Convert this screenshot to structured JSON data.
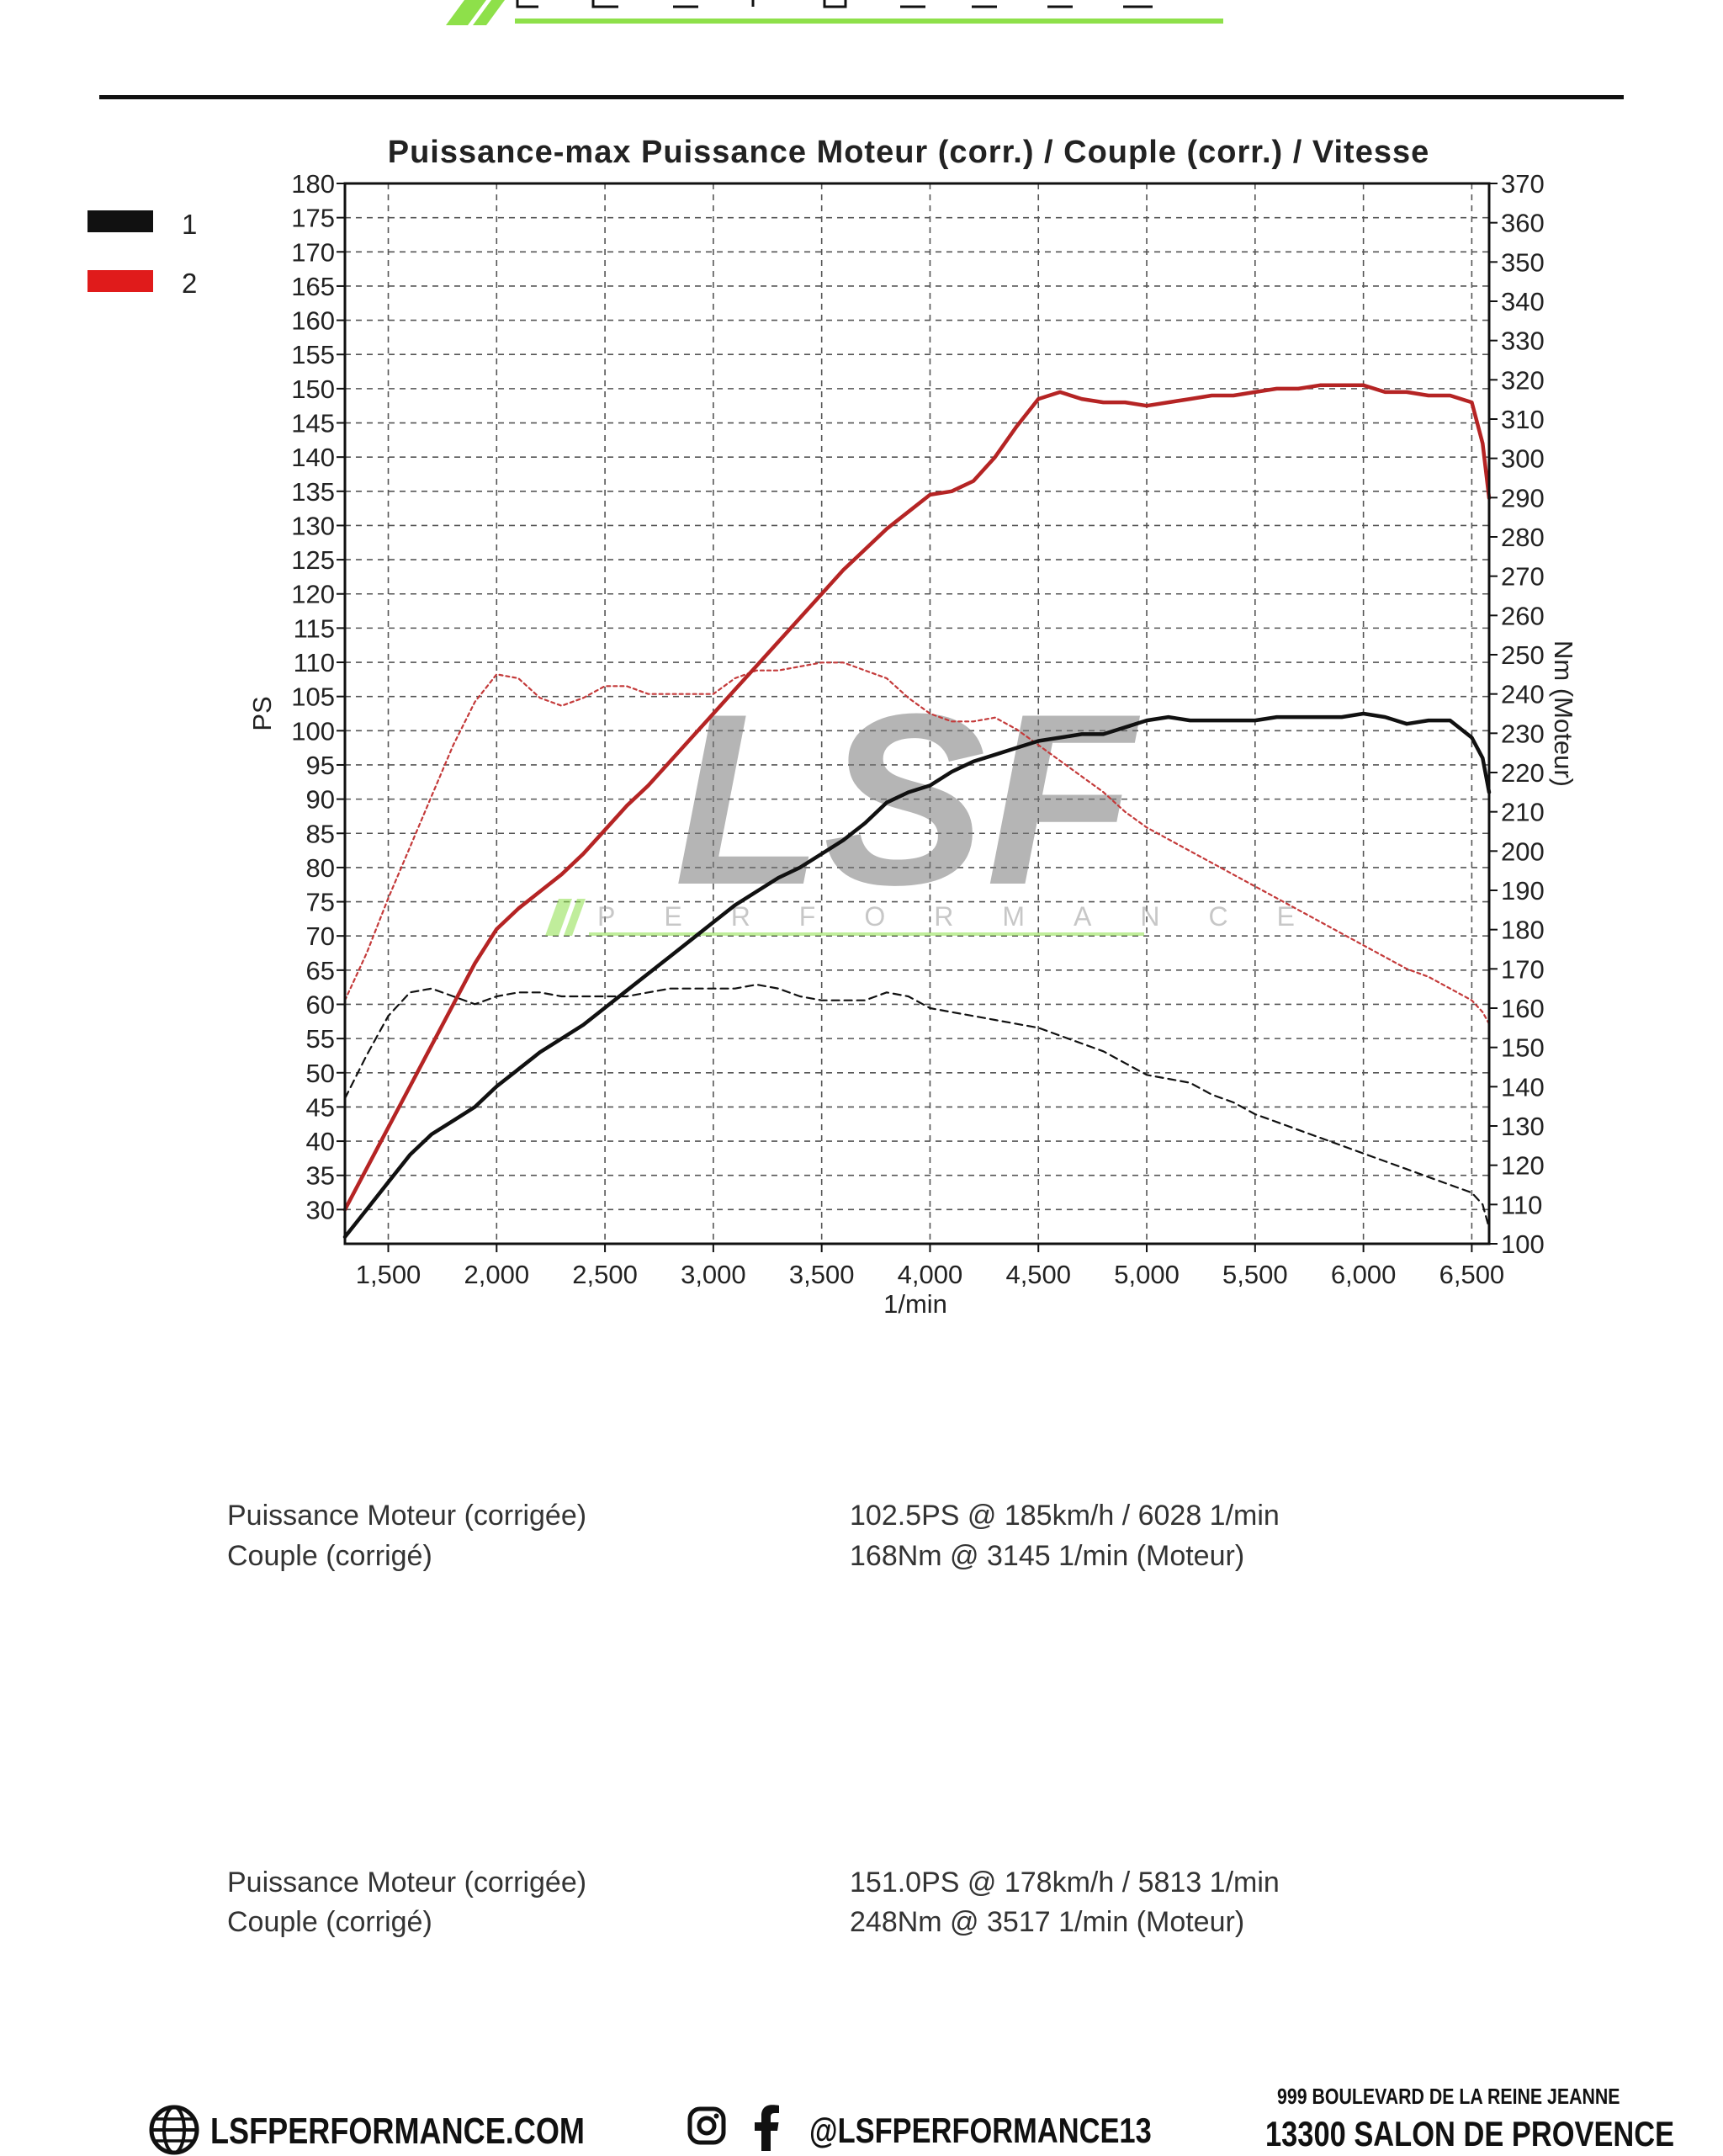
{
  "brand": {
    "logo_letters": "LSF",
    "logo_word": "PERFORMANCE",
    "accent_color": "#8ee04a"
  },
  "chart_data": {
    "type": "line",
    "title": "Puissance-max Puissance Moteur (corr.) / Couple (corr.) / Vitesse",
    "xlabel": "1/min",
    "ylabel_left": "PS",
    "ylabel_right": "Nm (Moteur)",
    "xlim": [
      1300,
      6580
    ],
    "ylim_left": [
      25,
      180
    ],
    "ylim_right": [
      100,
      370
    ],
    "x_ticks": [
      1500,
      2000,
      2500,
      3000,
      3500,
      4000,
      4500,
      5000,
      5500,
      6000,
      6500
    ],
    "x_tick_labels": [
      "1,500",
      "2,000",
      "2,500",
      "3,000",
      "3,500",
      "4,000",
      "4,500",
      "5,000",
      "5,500",
      "6,000",
      "6,500"
    ],
    "y_left_ticks": [
      30,
      35,
      40,
      45,
      50,
      55,
      60,
      65,
      70,
      75,
      80,
      85,
      90,
      95,
      100,
      105,
      110,
      115,
      120,
      125,
      130,
      135,
      140,
      145,
      150,
      155,
      160,
      165,
      170,
      175,
      180
    ],
    "y_right_ticks": [
      100,
      110,
      120,
      130,
      140,
      150,
      160,
      170,
      180,
      190,
      200,
      210,
      220,
      230,
      240,
      250,
      260,
      270,
      280,
      290,
      300,
      310,
      320,
      330,
      340,
      350,
      360,
      370
    ],
    "grid": true,
    "legend_position": "top-left",
    "legend": [
      {
        "label": "1",
        "color": "#111111"
      },
      {
        "label": "2",
        "color": "#e01b1b"
      }
    ],
    "series": [
      {
        "name": "1",
        "kind": "power",
        "axis": "left",
        "style": "solid",
        "color": "#111111",
        "x": [
          1300,
          1400,
          1500,
          1600,
          1700,
          1800,
          1900,
          2000,
          2100,
          2200,
          2300,
          2400,
          2500,
          2600,
          2700,
          2800,
          2900,
          3000,
          3100,
          3200,
          3300,
          3400,
          3500,
          3600,
          3700,
          3800,
          3900,
          4000,
          4100,
          4200,
          4300,
          4400,
          4500,
          4600,
          4700,
          4800,
          4900,
          5000,
          5100,
          5200,
          5300,
          5400,
          5500,
          5600,
          5700,
          5800,
          5900,
          6000,
          6100,
          6200,
          6300,
          6400,
          6500,
          6550,
          6580
        ],
        "y": [
          26,
          30,
          34,
          38,
          41,
          43,
          45,
          48,
          50.5,
          53,
          55,
          57,
          59.5,
          62,
          64.5,
          67,
          69.5,
          72,
          74.5,
          76.5,
          78.5,
          80,
          82,
          84,
          86.5,
          89.5,
          91,
          92,
          94,
          95.5,
          96.5,
          97.5,
          98.5,
          99,
          99.5,
          99.5,
          100.5,
          101.5,
          102,
          101.5,
          101.5,
          101.5,
          101.5,
          102,
          102,
          102,
          102,
          102.5,
          102,
          101,
          101.5,
          101.5,
          99,
          96,
          91
        ]
      },
      {
        "name": "2",
        "kind": "power",
        "axis": "left",
        "style": "solid",
        "color": "#b52424",
        "x": [
          1300,
          1400,
          1500,
          1600,
          1700,
          1800,
          1900,
          2000,
          2100,
          2200,
          2300,
          2400,
          2500,
          2600,
          2700,
          2800,
          2900,
          3000,
          3100,
          3200,
          3300,
          3400,
          3500,
          3600,
          3700,
          3800,
          3900,
          4000,
          4100,
          4200,
          4300,
          4400,
          4500,
          4600,
          4700,
          4800,
          4900,
          5000,
          5100,
          5200,
          5300,
          5400,
          5500,
          5600,
          5700,
          5800,
          5900,
          6000,
          6100,
          6200,
          6300,
          6400,
          6500,
          6550,
          6580
        ],
        "y": [
          30,
          36,
          42,
          48,
          54,
          60,
          66,
          71,
          74,
          76.5,
          79,
          82,
          85.5,
          89,
          92,
          95.5,
          99,
          102.5,
          106,
          109.5,
          113,
          116.5,
          120,
          123.5,
          126.5,
          129.5,
          132,
          134.5,
          135,
          136.5,
          140,
          144.5,
          148.5,
          149.5,
          148.5,
          148,
          148,
          147.5,
          148,
          148.5,
          149,
          149,
          149.5,
          150,
          150,
          150.5,
          150.5,
          150.5,
          149.5,
          149.5,
          149,
          149,
          148,
          142,
          134
        ]
      },
      {
        "name": "1",
        "kind": "torque",
        "axis": "right",
        "style": "dashed",
        "color": "#111111",
        "x": [
          1300,
          1400,
          1500,
          1600,
          1700,
          1800,
          1900,
          2000,
          2100,
          2200,
          2300,
          2400,
          2500,
          2600,
          2700,
          2800,
          2900,
          3000,
          3100,
          3200,
          3300,
          3400,
          3500,
          3600,
          3700,
          3800,
          3900,
          4000,
          4100,
          4200,
          4300,
          4400,
          4500,
          4600,
          4700,
          4800,
          4900,
          5000,
          5100,
          5200,
          5300,
          5400,
          5500,
          5600,
          5700,
          5800,
          5900,
          6000,
          6100,
          6200,
          6300,
          6400,
          6500,
          6550,
          6580
        ],
        "y": [
          137,
          148,
          158,
          164,
          165,
          163,
          161,
          163,
          164,
          164,
          163,
          163,
          163,
          163,
          164,
          165,
          165,
          165,
          165,
          166,
          165,
          163,
          162,
          162,
          162,
          164,
          163,
          160,
          159,
          158,
          157,
          156,
          155,
          153,
          151,
          149,
          146,
          143,
          142,
          141,
          138,
          136,
          133,
          131,
          129,
          127,
          125,
          123,
          121,
          119,
          117,
          115,
          113,
          110,
          104
        ]
      },
      {
        "name": "2",
        "kind": "torque",
        "axis": "right",
        "style": "dotted",
        "color": "#c43a3a",
        "x": [
          1300,
          1400,
          1500,
          1600,
          1700,
          1800,
          1900,
          2000,
          2100,
          2200,
          2300,
          2400,
          2500,
          2600,
          2700,
          2800,
          2900,
          3000,
          3100,
          3200,
          3300,
          3400,
          3500,
          3600,
          3700,
          3800,
          3900,
          4000,
          4100,
          4200,
          4300,
          4400,
          4500,
          4600,
          4700,
          4800,
          4900,
          5000,
          5100,
          5200,
          5300,
          5400,
          5500,
          5600,
          5700,
          5800,
          5900,
          6000,
          6100,
          6200,
          6300,
          6400,
          6500,
          6550,
          6580
        ],
        "y": [
          162,
          174,
          188,
          201,
          214,
          227,
          238,
          245,
          244,
          239,
          237,
          239,
          242,
          242,
          240,
          240,
          240,
          240,
          244,
          246,
          246,
          247,
          248,
          248,
          246,
          244,
          239,
          235,
          233,
          233,
          234,
          231,
          227,
          223,
          219,
          215,
          210,
          206,
          203,
          200,
          197,
          194,
          191,
          188,
          185,
          182,
          179,
          176,
          173,
          170,
          168,
          165,
          162,
          159,
          156
        ]
      }
    ]
  },
  "results": [
    {
      "label_power": "Puissance Moteur (corrigée)",
      "value_power": "102.5PS @ 185km/h / 6028 1/min",
      "label_torque": "Couple (corrigé)",
      "value_torque": "168Nm @ 3145 1/min (Moteur)"
    },
    {
      "label_power": "Puissance Moteur (corrigée)",
      "value_power": "151.0PS @ 178km/h / 5813 1/min",
      "label_torque": "Couple (corrigé)",
      "value_torque": "248Nm @ 3517 1/min (Moteur)"
    }
  ],
  "footer": {
    "website": "LSFPERFORMANCE.COM",
    "website_icon": "globe-icon",
    "social_icons": [
      "instagram-icon",
      "facebook-icon"
    ],
    "social_handle": "@LSFPERFORMANCE13",
    "address_line1": "999 BOULEVARD DE LA REINE JEANNE",
    "address_line2": "13300 SALON DE PROVENCE"
  }
}
